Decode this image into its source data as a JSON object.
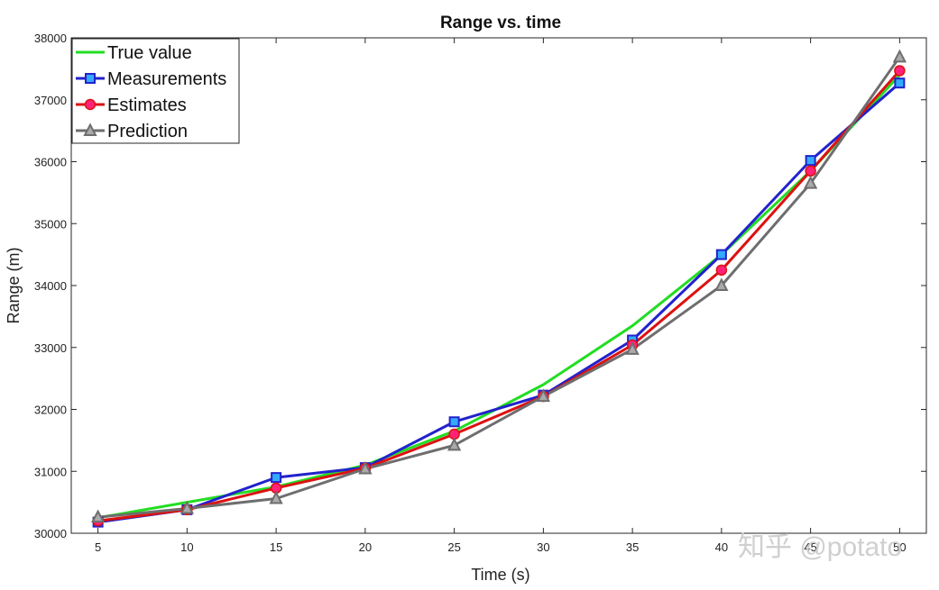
{
  "chart_data": {
    "type": "line",
    "title": "Range vs. time",
    "xlabel": "Time (s)",
    "ylabel": "Range (m)",
    "xlim": [
      3.5,
      51.5
    ],
    "ylim": [
      30000,
      38000
    ],
    "xticks": [
      5,
      10,
      15,
      20,
      25,
      30,
      35,
      40,
      45,
      50
    ],
    "yticks": [
      30000,
      31000,
      32000,
      33000,
      34000,
      35000,
      36000,
      37000,
      38000
    ],
    "grid": false,
    "legend_position": "top-left",
    "x": [
      5,
      10,
      15,
      20,
      25,
      30,
      35,
      40,
      45,
      50
    ],
    "series": [
      {
        "name": "True value",
        "color": "#22dd22",
        "marker": "none",
        "values": [
          30250,
          30500,
          30750,
          31100,
          31650,
          32400,
          33350,
          34500,
          35850,
          37400
        ]
      },
      {
        "name": "Measurements",
        "color": "#2222cc",
        "marker": "square",
        "marker_color": "#33aaff",
        "values": [
          30180,
          30380,
          30900,
          31060,
          31800,
          32230,
          33120,
          34500,
          36020,
          37270
        ]
      },
      {
        "name": "Estimates",
        "color": "#dd1111",
        "marker": "circle",
        "marker_color": "#ff2277",
        "values": [
          30200,
          30380,
          30730,
          31050,
          31600,
          32210,
          33040,
          34250,
          35850,
          37470
        ]
      },
      {
        "name": "Prediction",
        "color": "#6e6e6e",
        "marker": "triangle",
        "marker_color": "#aaaaaa",
        "values": [
          30260,
          30400,
          30560,
          31040,
          31420,
          32210,
          32970,
          34000,
          35650,
          37690
        ]
      }
    ]
  },
  "watermark": {
    "text": "知乎 @potato"
  }
}
